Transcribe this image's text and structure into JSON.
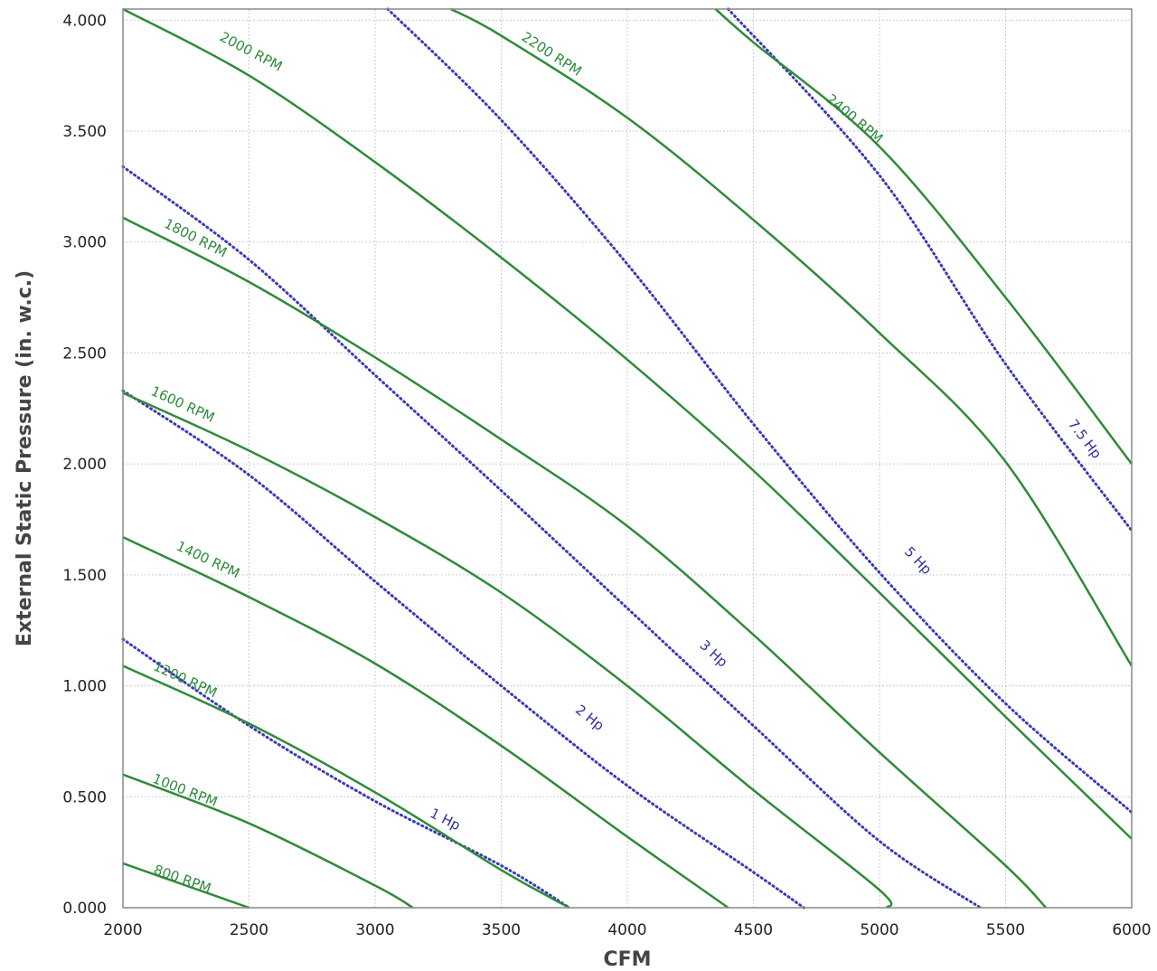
{
  "chart_data": {
    "type": "line",
    "xlabel": "CFM",
    "ylabel": "External Static Pressure (in. w.c.)",
    "xlim": [
      2000,
      6000
    ],
    "ylim": [
      0,
      4.05
    ],
    "x_ticks": [
      "2000",
      "2500",
      "3000",
      "3500",
      "4000",
      "4500",
      "5000",
      "5500",
      "6000"
    ],
    "y_ticks": [
      "0.000",
      "0.500",
      "1.000",
      "1.500",
      "2.000",
      "2.500",
      "3.000",
      "3.500",
      "4.000"
    ],
    "grid": true,
    "colors": {
      "rpm": "#2e8b3a",
      "hp": "#3a3ab8",
      "grid": "#cccccc",
      "frame": "#888888"
    },
    "rpm_series": [
      {
        "name": "800 RPM",
        "label_at": [
          2230,
          0.11
        ],
        "points": [
          [
            2000,
            0.2
          ],
          [
            2250,
            0.1
          ],
          [
            2500,
            0.0
          ]
        ]
      },
      {
        "name": "1000 RPM",
        "label_at": [
          2240,
          0.51
        ],
        "points": [
          [
            2000,
            0.6
          ],
          [
            2500,
            0.38
          ],
          [
            3000,
            0.1
          ],
          [
            3150,
            0.0
          ]
        ]
      },
      {
        "name": "1200 RPM",
        "label_at": [
          2240,
          1.01
        ],
        "points": [
          [
            2000,
            1.09
          ],
          [
            2500,
            0.83
          ],
          [
            3000,
            0.52
          ],
          [
            3500,
            0.17
          ],
          [
            3770,
            0.0
          ]
        ]
      },
      {
        "name": "1400 RPM",
        "label_at": [
          2330,
          1.55
        ],
        "points": [
          [
            2000,
            1.67
          ],
          [
            2500,
            1.4
          ],
          [
            3000,
            1.1
          ],
          [
            3500,
            0.73
          ],
          [
            4000,
            0.32
          ],
          [
            4400,
            0.0
          ]
        ]
      },
      {
        "name": "1600 RPM",
        "label_at": [
          2230,
          2.25
        ],
        "points": [
          [
            2000,
            2.32
          ],
          [
            2500,
            2.06
          ],
          [
            3000,
            1.76
          ],
          [
            3500,
            1.42
          ],
          [
            4000,
            1.0
          ],
          [
            4500,
            0.53
          ],
          [
            5000,
            0.08
          ],
          [
            5030,
            0.0
          ]
        ]
      },
      {
        "name": "1800 RPM",
        "label_at": [
          2280,
          3.0
        ],
        "points": [
          [
            2000,
            3.11
          ],
          [
            2500,
            2.82
          ],
          [
            3000,
            2.48
          ],
          [
            3500,
            2.11
          ],
          [
            4000,
            1.72
          ],
          [
            4500,
            1.23
          ],
          [
            5000,
            0.7
          ],
          [
            5500,
            0.19
          ],
          [
            5660,
            0.0
          ]
        ]
      },
      {
        "name": "2000 RPM",
        "label_at": [
          2500,
          3.84
        ],
        "points": [
          [
            2000,
            4.05
          ],
          [
            2500,
            3.75
          ],
          [
            3000,
            3.36
          ],
          [
            3500,
            2.93
          ],
          [
            4000,
            2.47
          ],
          [
            4500,
            1.97
          ],
          [
            5000,
            1.42
          ],
          [
            5500,
            0.86
          ],
          [
            6000,
            0.31
          ]
        ]
      },
      {
        "name": "2200 RPM",
        "label_at": [
          3690,
          3.83
        ],
        "points": [
          [
            3300,
            4.05
          ],
          [
            3500,
            3.93
          ],
          [
            4000,
            3.56
          ],
          [
            4500,
            3.1
          ],
          [
            5000,
            2.59
          ],
          [
            5500,
            2.01
          ],
          [
            6000,
            1.09
          ]
        ]
      },
      {
        "name": "2400 RPM",
        "label_at": [
          4890,
          3.54
        ],
        "points": [
          [
            4350,
            4.05
          ],
          [
            4500,
            3.9
          ],
          [
            5000,
            3.43
          ],
          [
            5500,
            2.75
          ],
          [
            6000,
            2.0
          ]
        ]
      }
    ],
    "hp_series": [
      {
        "name": "1 Hp",
        "label_at": [
          3270,
          0.38
        ],
        "points": [
          [
            2000,
            1.21
          ],
          [
            2500,
            0.82
          ],
          [
            3000,
            0.48
          ],
          [
            3500,
            0.19
          ],
          [
            3770,
            0.0
          ]
        ]
      },
      {
        "name": "2 Hp",
        "label_at": [
          3840,
          0.84
        ],
        "points": [
          [
            2000,
            2.33
          ],
          [
            2500,
            1.95
          ],
          [
            3000,
            1.47
          ],
          [
            3500,
            1.0
          ],
          [
            4000,
            0.55
          ],
          [
            4500,
            0.16
          ],
          [
            4700,
            0.0
          ]
        ]
      },
      {
        "name": "3 Hp",
        "label_at": [
          4330,
          1.13
        ],
        "points": [
          [
            2000,
            3.34
          ],
          [
            2500,
            2.92
          ],
          [
            3000,
            2.4
          ],
          [
            3500,
            1.88
          ],
          [
            4000,
            1.35
          ],
          [
            4500,
            0.82
          ],
          [
            5000,
            0.3
          ],
          [
            5400,
            0.0
          ]
        ]
      },
      {
        "name": "5 Hp",
        "label_at": [
          5140,
          1.55
        ],
        "points": [
          [
            3050,
            4.05
          ],
          [
            3500,
            3.55
          ],
          [
            4000,
            2.9
          ],
          [
            4500,
            2.18
          ],
          [
            5000,
            1.51
          ],
          [
            5500,
            0.92
          ],
          [
            6000,
            0.43
          ]
        ]
      },
      {
        "name": "7.5 Hp",
        "label_at": [
          5800,
          2.1
        ],
        "points": [
          [
            4400,
            4.05
          ],
          [
            5000,
            3.3
          ],
          [
            5500,
            2.45
          ],
          [
            6000,
            1.7
          ]
        ]
      }
    ]
  }
}
